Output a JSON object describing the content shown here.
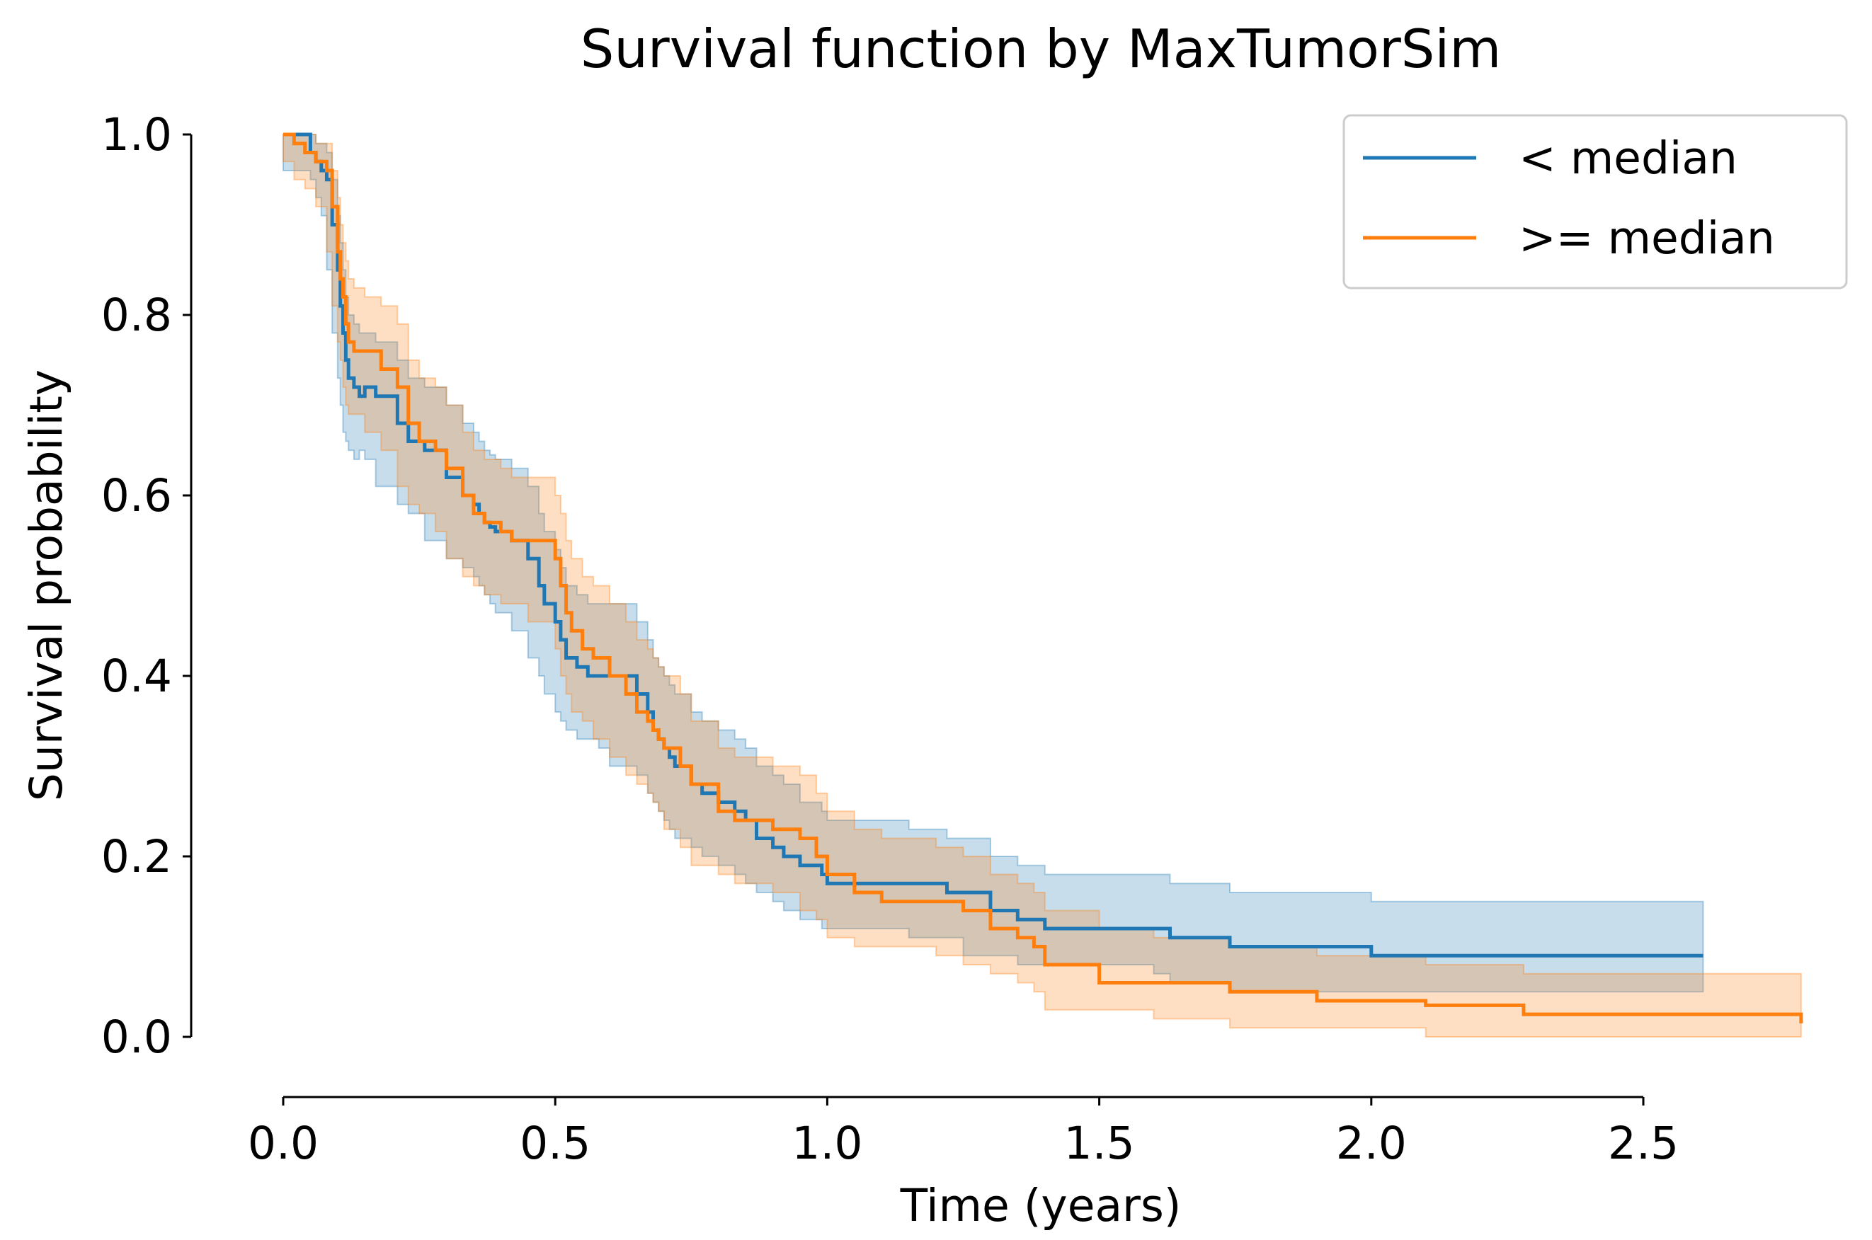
{
  "chart_data": {
    "type": "line",
    "subtype": "kaplan-meier step function with confidence bands",
    "title": "Survival function by MaxTumorSim",
    "xlabel": "Time (years)",
    "ylabel": "Survival probability",
    "xlim": [
      0,
      2.5
    ],
    "ylim": [
      0,
      1.0
    ],
    "xticks": [
      0.0,
      0.5,
      1.0,
      1.5,
      2.0,
      2.5
    ],
    "xtick_labels": [
      "0.0",
      "0.5",
      "1.0",
      "1.5",
      "2.0",
      "2.5"
    ],
    "yticks": [
      0.0,
      0.2,
      0.4,
      0.6,
      0.8,
      1.0
    ],
    "ytick_labels": [
      "0.0",
      "0.2",
      "0.4",
      "0.6",
      "0.8",
      "1.0"
    ],
    "grid": false,
    "legend_position": "top-right",
    "series": [
      {
        "name": "< median",
        "color": "#1f77b4",
        "times": [
          0,
          0.05,
          0.06,
          0.07,
          0.08,
          0.09,
          0.1,
          0.105,
          0.11,
          0.115,
          0.12,
          0.13,
          0.14,
          0.15,
          0.17,
          0.21,
          0.23,
          0.26,
          0.3,
          0.33,
          0.35,
          0.36,
          0.37,
          0.38,
          0.39,
          0.42,
          0.45,
          0.47,
          0.48,
          0.5,
          0.51,
          0.52,
          0.54,
          0.56,
          0.58,
          0.6,
          0.65,
          0.67,
          0.68,
          0.69,
          0.7,
          0.71,
          0.72,
          0.75,
          0.77,
          0.8,
          0.83,
          0.85,
          0.87,
          0.9,
          0.92,
          0.95,
          0.99,
          1.0,
          1.1,
          1.15,
          1.22,
          1.25,
          1.3,
          1.35,
          1.4,
          1.6,
          1.63,
          1.74,
          2.0,
          2.61
        ],
        "survival": [
          1.0,
          0.98,
          0.97,
          0.96,
          0.95,
          0.9,
          0.85,
          0.81,
          0.78,
          0.75,
          0.73,
          0.72,
          0.71,
          0.72,
          0.71,
          0.68,
          0.66,
          0.65,
          0.62,
          0.6,
          0.59,
          0.58,
          0.57,
          0.565,
          0.56,
          0.55,
          0.53,
          0.5,
          0.48,
          0.46,
          0.44,
          0.42,
          0.41,
          0.4,
          0.4,
          0.4,
          0.38,
          0.36,
          0.34,
          0.33,
          0.32,
          0.31,
          0.3,
          0.28,
          0.27,
          0.26,
          0.25,
          0.24,
          0.22,
          0.21,
          0.2,
          0.19,
          0.18,
          0.17,
          0.17,
          0.17,
          0.16,
          0.16,
          0.14,
          0.13,
          0.12,
          0.12,
          0.11,
          0.1,
          0.09,
          0.09
        ],
        "ci_upper": [
          1.0,
          1.0,
          0.99,
          0.99,
          0.98,
          0.95,
          0.91,
          0.88,
          0.85,
          0.82,
          0.8,
          0.79,
          0.78,
          0.78,
          0.77,
          0.75,
          0.73,
          0.72,
          0.7,
          0.68,
          0.67,
          0.66,
          0.65,
          0.645,
          0.64,
          0.63,
          0.61,
          0.58,
          0.56,
          0.54,
          0.52,
          0.5,
          0.49,
          0.48,
          0.48,
          0.48,
          0.46,
          0.44,
          0.42,
          0.41,
          0.4,
          0.39,
          0.38,
          0.36,
          0.35,
          0.34,
          0.33,
          0.32,
          0.3,
          0.29,
          0.28,
          0.26,
          0.25,
          0.24,
          0.24,
          0.23,
          0.22,
          0.22,
          0.2,
          0.19,
          0.18,
          0.18,
          0.17,
          0.16,
          0.15,
          0.15
        ],
        "ci_lower": [
          1.0,
          0.96,
          0.95,
          0.93,
          0.91,
          0.85,
          0.78,
          0.73,
          0.7,
          0.67,
          0.66,
          0.65,
          0.64,
          0.65,
          0.64,
          0.61,
          0.59,
          0.58,
          0.55,
          0.53,
          0.52,
          0.51,
          0.5,
          0.49,
          0.48,
          0.47,
          0.45,
          0.42,
          0.4,
          0.38,
          0.36,
          0.35,
          0.34,
          0.33,
          0.33,
          0.32,
          0.3,
          0.29,
          0.27,
          0.26,
          0.25,
          0.24,
          0.23,
          0.22,
          0.21,
          0.2,
          0.19,
          0.18,
          0.17,
          0.16,
          0.15,
          0.14,
          0.13,
          0.12,
          0.12,
          0.12,
          0.11,
          0.11,
          0.09,
          0.09,
          0.08,
          0.08,
          0.07,
          0.06,
          0.05,
          0.05
        ]
      },
      {
        "name": ">= median",
        "color": "#ff7f0e",
        "times": [
          0,
          0.02,
          0.04,
          0.06,
          0.08,
          0.09,
          0.1,
          0.105,
          0.11,
          0.115,
          0.12,
          0.13,
          0.15,
          0.18,
          0.21,
          0.23,
          0.25,
          0.28,
          0.3,
          0.33,
          0.35,
          0.37,
          0.4,
          0.42,
          0.45,
          0.5,
          0.51,
          0.52,
          0.53,
          0.55,
          0.57,
          0.6,
          0.63,
          0.65,
          0.67,
          0.68,
          0.69,
          0.7,
          0.73,
          0.75,
          0.8,
          0.83,
          0.9,
          0.95,
          0.98,
          1.0,
          1.05,
          1.1,
          1.2,
          1.25,
          1.3,
          1.35,
          1.38,
          1.4,
          1.5,
          1.6,
          1.74,
          1.9,
          2.1,
          2.28,
          2.79
        ],
        "survival": [
          1.0,
          0.99,
          0.98,
          0.97,
          0.96,
          0.92,
          0.87,
          0.84,
          0.82,
          0.79,
          0.77,
          0.76,
          0.76,
          0.74,
          0.72,
          0.68,
          0.66,
          0.65,
          0.63,
          0.6,
          0.58,
          0.57,
          0.56,
          0.55,
          0.55,
          0.53,
          0.5,
          0.47,
          0.45,
          0.43,
          0.42,
          0.4,
          0.38,
          0.36,
          0.35,
          0.34,
          0.33,
          0.32,
          0.3,
          0.28,
          0.25,
          0.24,
          0.23,
          0.22,
          0.2,
          0.18,
          0.16,
          0.15,
          0.15,
          0.14,
          0.12,
          0.11,
          0.1,
          0.08,
          0.06,
          0.06,
          0.05,
          0.04,
          0.035,
          0.025,
          0.015
        ],
        "ci_upper": [
          1.0,
          1.0,
          1.0,
          0.99,
          0.99,
          0.96,
          0.93,
          0.9,
          0.88,
          0.86,
          0.84,
          0.83,
          0.82,
          0.81,
          0.79,
          0.75,
          0.73,
          0.72,
          0.7,
          0.67,
          0.65,
          0.64,
          0.63,
          0.62,
          0.62,
          0.6,
          0.58,
          0.55,
          0.53,
          0.51,
          0.5,
          0.48,
          0.46,
          0.44,
          0.43,
          0.42,
          0.41,
          0.4,
          0.38,
          0.35,
          0.32,
          0.31,
          0.3,
          0.29,
          0.27,
          0.25,
          0.23,
          0.22,
          0.21,
          0.2,
          0.18,
          0.17,
          0.16,
          0.14,
          0.12,
          0.11,
          0.1,
          0.09,
          0.08,
          0.07,
          0.07
        ],
        "ci_lower": [
          1.0,
          0.97,
          0.95,
          0.94,
          0.92,
          0.87,
          0.81,
          0.77,
          0.75,
          0.72,
          0.7,
          0.69,
          0.69,
          0.67,
          0.65,
          0.61,
          0.59,
          0.58,
          0.56,
          0.53,
          0.51,
          0.5,
          0.49,
          0.48,
          0.48,
          0.46,
          0.43,
          0.4,
          0.38,
          0.36,
          0.35,
          0.33,
          0.31,
          0.29,
          0.28,
          0.27,
          0.26,
          0.25,
          0.23,
          0.21,
          0.19,
          0.18,
          0.17,
          0.16,
          0.14,
          0.13,
          0.11,
          0.1,
          0.1,
          0.09,
          0.08,
          0.07,
          0.06,
          0.05,
          0.03,
          0.03,
          0.02,
          0.01,
          0.01,
          0.0,
          0.0
        ]
      }
    ]
  }
}
